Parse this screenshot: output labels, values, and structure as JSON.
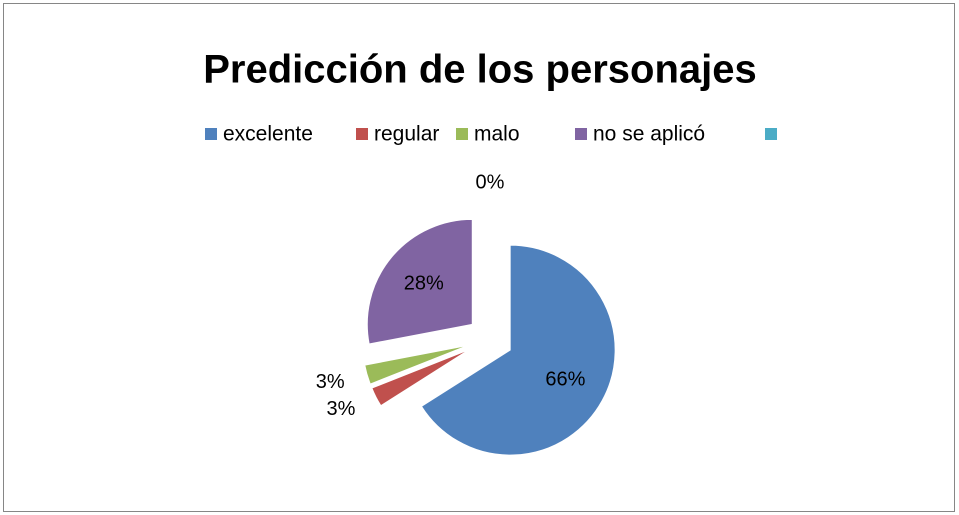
{
  "chart_data": {
    "type": "pie",
    "title": "Predicción de los personajes",
    "categories": [
      "excelente",
      "regular",
      "malo",
      "no se aplicó",
      null
    ],
    "values": [
      66,
      3,
      3,
      28,
      0
    ],
    "value_labels": [
      "66%",
      "3%",
      "3%",
      "28%",
      "0%"
    ],
    "colors": [
      "#4f81bd",
      "#c0504d",
      "#9bbb59",
      "#8064a2",
      "#4bacc6"
    ],
    "legend": "top"
  }
}
